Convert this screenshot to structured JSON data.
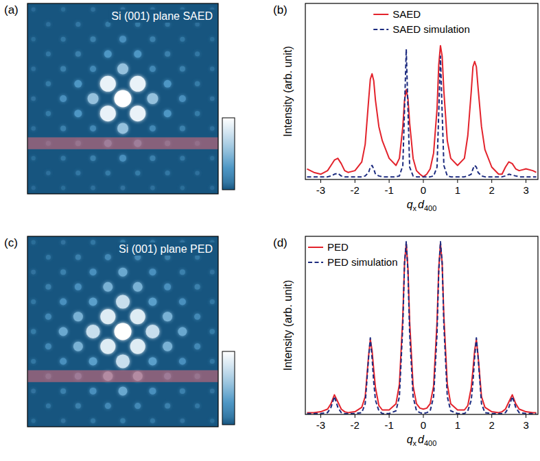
{
  "chart_data": [
    {
      "type": "image",
      "panel": "(a)",
      "title": "Si (001) plane SAED",
      "xlim": [
        -3.2,
        3.2
      ],
      "ylim": [
        -3.2,
        3.2
      ],
      "tick_labels": false,
      "grid_x": [
        -3,
        -2.5,
        -2,
        -1.5,
        -1,
        -0.5,
        0,
        0.5,
        1,
        1.5,
        2,
        2.5,
        3
      ],
      "grid_y": [
        3,
        2.5,
        2,
        1.5,
        1,
        0.5,
        0,
        -0.5,
        -1,
        -1.5,
        -2,
        -2.5,
        -3
      ],
      "cells": [
        [
          0.05,
          null,
          0.06,
          null,
          0.07,
          null,
          0.08,
          null,
          0.07,
          null,
          0.06,
          null,
          0.05
        ],
        [
          null,
          0.07,
          null,
          0.1,
          null,
          0.12,
          null,
          0.12,
          null,
          0.1,
          null,
          0.07,
          null
        ],
        [
          0.06,
          null,
          0.1,
          null,
          0.15,
          null,
          0.25,
          null,
          0.15,
          null,
          0.1,
          null,
          0.06
        ],
        [
          null,
          0.1,
          null,
          0.15,
          null,
          0.3,
          null,
          0.3,
          null,
          0.15,
          null,
          0.1,
          null
        ],
        [
          0.07,
          null,
          0.15,
          null,
          0.2,
          null,
          0.55,
          null,
          0.2,
          null,
          0.15,
          null,
          0.07
        ],
        [
          null,
          0.12,
          null,
          0.3,
          null,
          0.9,
          null,
          0.9,
          null,
          0.3,
          null,
          0.12,
          null
        ],
        [
          0.08,
          null,
          0.25,
          null,
          0.55,
          null,
          1,
          null,
          0.55,
          null,
          0.25,
          null,
          0.08
        ],
        [
          null,
          0.12,
          null,
          0.3,
          null,
          0.9,
          null,
          0.9,
          null,
          0.3,
          null,
          0.12,
          null
        ],
        [
          0.07,
          null,
          0.15,
          null,
          0.2,
          null,
          0.55,
          null,
          0.2,
          null,
          0.15,
          null,
          0.07
        ],
        [
          null,
          0.1,
          null,
          0.15,
          null,
          0.3,
          null,
          0.3,
          null,
          0.15,
          null,
          0.1,
          null
        ],
        [
          0.06,
          null,
          0.1,
          null,
          0.15,
          null,
          0.25,
          null,
          0.15,
          null,
          0.1,
          null,
          0.06
        ],
        [
          null,
          0.07,
          null,
          0.1,
          null,
          0.12,
          null,
          0.12,
          null,
          0.1,
          null,
          0.07,
          null
        ],
        [
          0.05,
          null,
          0.06,
          null,
          0.07,
          null,
          0.08,
          null,
          0.07,
          null,
          0.06,
          null,
          0.05
        ]
      ],
      "zlim": [
        0,
        1
      ],
      "colors": [
        "#17557f",
        "#4f98c6",
        "#ffffff"
      ],
      "profile_y": -1.5,
      "profile_width": 0.4
    },
    {
      "type": "line",
      "panel": "(b)",
      "x": [
        -3.4,
        -3.2,
        -3.0,
        -2.8,
        -2.7,
        -2.6,
        -2.5,
        -2.4,
        -2.3,
        -2.2,
        -2.0,
        -1.8,
        -1.7,
        -1.6,
        -1.55,
        -1.5,
        -1.45,
        -1.4,
        -1.3,
        -1.2,
        -1.0,
        -0.8,
        -0.7,
        -0.6,
        -0.55,
        -0.5,
        -0.45,
        -0.4,
        -0.3,
        -0.2,
        -0.1,
        0,
        0.1,
        0.2,
        0.3,
        0.4,
        0.45,
        0.5,
        0.55,
        0.6,
        0.7,
        0.8,
        1.0,
        1.2,
        1.3,
        1.4,
        1.45,
        1.5,
        1.55,
        1.6,
        1.7,
        1.8,
        2.0,
        2.2,
        2.3,
        2.4,
        2.5,
        2.6,
        2.7,
        2.8,
        3.0,
        3.2,
        3.3
      ],
      "xlim": [
        -3.45,
        3.35
      ],
      "xticks": [
        -3,
        -2,
        -1,
        0,
        1,
        2,
        3
      ],
      "ylim": [
        0,
        1
      ],
      "tick_labels": "x",
      "xlabel": [
        [
          "q",
          "x"
        ],
        [
          "d",
          "400"
        ]
      ],
      "ylabel": "Intensity (arb. unit)",
      "legend": "upper center",
      "series": [
        {
          "name": "SAED",
          "color": "#e3222b",
          "line_style": "solid",
          "values": [
            0.06,
            0.04,
            0.03,
            0.05,
            0.08,
            0.11,
            0.12,
            0.09,
            0.05,
            0.04,
            0.05,
            0.1,
            0.2,
            0.45,
            0.57,
            0.6,
            0.56,
            0.45,
            0.3,
            0.22,
            0.12,
            0.08,
            0.12,
            0.3,
            0.45,
            0.51,
            0.46,
            0.32,
            0.12,
            0.05,
            0.03,
            0.015,
            0.03,
            0.06,
            0.15,
            0.4,
            0.65,
            0.76,
            0.7,
            0.5,
            0.22,
            0.12,
            0.08,
            0.12,
            0.25,
            0.5,
            0.64,
            0.67,
            0.64,
            0.52,
            0.3,
            0.17,
            0.07,
            0.03,
            0.03,
            0.07,
            0.1,
            0.09,
            0.06,
            0.05,
            0.06,
            0.05,
            0.04
          ]
        },
        {
          "name": "SAED simulation",
          "color": "#1c2b7f",
          "line_style": "dashed",
          "values": [
            0.015,
            0.015,
            0.015,
            0.015,
            0.02,
            0.03,
            0.035,
            0.02,
            0.015,
            0.015,
            0.015,
            0.015,
            0.02,
            0.04,
            0.07,
            0.08,
            0.06,
            0.03,
            0.02,
            0.015,
            0.015,
            0.015,
            0.02,
            0.08,
            0.4,
            0.74,
            0.4,
            0.07,
            0.02,
            0.015,
            0.015,
            0.015,
            0.015,
            0.015,
            0.02,
            0.07,
            0.38,
            0.7,
            0.38,
            0.08,
            0.02,
            0.015,
            0.015,
            0.015,
            0.02,
            0.03,
            0.06,
            0.08,
            0.07,
            0.04,
            0.02,
            0.015,
            0.015,
            0.015,
            0.015,
            0.02,
            0.03,
            0.025,
            0.02,
            0.015,
            0.015,
            0.015,
            0.015
          ]
        }
      ]
    },
    {
      "type": "image",
      "panel": "(c)",
      "title": "Si (001) plane PED",
      "xlim": [
        -3.2,
        3.2
      ],
      "ylim": [
        -3.2,
        3.2
      ],
      "tick_labels": false,
      "grid_x": [
        -3,
        -2.5,
        -2,
        -1.5,
        -1,
        -0.5,
        0,
        0.5,
        1,
        1.5,
        2,
        2.5,
        3
      ],
      "grid_y": [
        3,
        2.5,
        2,
        1.5,
        1,
        0.5,
        0,
        -0.5,
        -1,
        -1.5,
        -2,
        -2.5,
        -3
      ],
      "cells": [
        [
          0.06,
          null,
          0.08,
          null,
          0.1,
          null,
          0.12,
          null,
          0.1,
          null,
          0.08,
          null,
          0.06
        ],
        [
          null,
          0.1,
          null,
          0.15,
          null,
          0.2,
          null,
          0.2,
          null,
          0.15,
          null,
          0.1,
          null
        ],
        [
          0.08,
          null,
          0.15,
          null,
          0.25,
          null,
          0.4,
          null,
          0.25,
          null,
          0.15,
          null,
          0.08
        ],
        [
          null,
          0.15,
          null,
          0.25,
          null,
          0.45,
          null,
          0.45,
          null,
          0.25,
          null,
          0.15,
          null
        ],
        [
          0.1,
          null,
          0.25,
          null,
          0.35,
          null,
          0.75,
          null,
          0.35,
          null,
          0.25,
          null,
          0.1
        ],
        [
          null,
          0.2,
          null,
          0.45,
          null,
          0.85,
          null,
          0.85,
          null,
          0.45,
          null,
          0.2,
          null
        ],
        [
          0.12,
          null,
          0.4,
          null,
          0.75,
          null,
          1,
          null,
          0.75,
          null,
          0.4,
          null,
          0.12
        ],
        [
          null,
          0.2,
          null,
          0.45,
          null,
          0.85,
          null,
          0.85,
          null,
          0.45,
          null,
          0.2,
          null
        ],
        [
          0.1,
          null,
          0.25,
          null,
          0.35,
          null,
          0.75,
          null,
          0.35,
          null,
          0.25,
          null,
          0.1
        ],
        [
          null,
          0.15,
          null,
          0.25,
          null,
          0.45,
          null,
          0.45,
          null,
          0.25,
          null,
          0.15,
          null
        ],
        [
          0.08,
          null,
          0.15,
          null,
          0.25,
          null,
          0.4,
          null,
          0.25,
          null,
          0.15,
          null,
          0.08
        ],
        [
          null,
          0.1,
          null,
          0.15,
          null,
          0.2,
          null,
          0.2,
          null,
          0.15,
          null,
          0.1,
          null
        ],
        [
          0.06,
          null,
          0.08,
          null,
          0.1,
          null,
          0.12,
          null,
          0.1,
          null,
          0.08,
          null,
          0.06
        ]
      ],
      "zlim": [
        0,
        1
      ],
      "colors": [
        "#17557f",
        "#4f98c6",
        "#ffffff"
      ],
      "profile_y": -1.5,
      "profile_width": 0.4
    },
    {
      "type": "line",
      "panel": "(d)",
      "x": [
        -3.4,
        -3.2,
        -3.0,
        -2.8,
        -2.7,
        -2.6,
        -2.5,
        -2.4,
        -2.3,
        -2.2,
        -2.0,
        -1.8,
        -1.7,
        -1.6,
        -1.55,
        -1.5,
        -1.45,
        -1.4,
        -1.3,
        -1.2,
        -1.0,
        -0.8,
        -0.7,
        -0.6,
        -0.55,
        -0.5,
        -0.45,
        -0.4,
        -0.3,
        -0.2,
        -0.1,
        0,
        0.1,
        0.2,
        0.3,
        0.4,
        0.45,
        0.5,
        0.55,
        0.6,
        0.7,
        0.8,
        1.0,
        1.2,
        1.3,
        1.4,
        1.45,
        1.5,
        1.55,
        1.6,
        1.7,
        1.8,
        2.0,
        2.2,
        2.3,
        2.4,
        2.5,
        2.6,
        2.7,
        2.8,
        3.0,
        3.2,
        3.3
      ],
      "xlim": [
        -3.45,
        3.35
      ],
      "xticks": [
        -3,
        -2,
        -1,
        0,
        1,
        2,
        3
      ],
      "ylim": [
        0,
        1
      ],
      "tick_labels": "x",
      "xlabel": [
        [
          "q",
          "x"
        ],
        [
          "d",
          "400"
        ]
      ],
      "ylabel": "Intensity (arb. unit)",
      "legend": "upper left",
      "series": [
        {
          "name": "PED",
          "color": "#e3222b",
          "line_style": "solid",
          "values": [
            0.01,
            0.01,
            0.015,
            0.03,
            0.06,
            0.11,
            0.07,
            0.03,
            0.015,
            0.01,
            0.015,
            0.04,
            0.1,
            0.33,
            0.42,
            0.36,
            0.25,
            0.15,
            0.05,
            0.025,
            0.025,
            0.06,
            0.17,
            0.55,
            0.85,
            0.96,
            0.82,
            0.52,
            0.16,
            0.06,
            0.035,
            0.03,
            0.035,
            0.06,
            0.16,
            0.52,
            0.82,
            0.96,
            0.85,
            0.55,
            0.17,
            0.06,
            0.025,
            0.025,
            0.05,
            0.15,
            0.25,
            0.36,
            0.42,
            0.33,
            0.1,
            0.04,
            0.015,
            0.01,
            0.015,
            0.03,
            0.07,
            0.11,
            0.06,
            0.03,
            0.015,
            0.01,
            0.01
          ]
        },
        {
          "name": "PED simulation",
          "color": "#1c2b7f",
          "line_style": "dashed",
          "values": [
            0.005,
            0.005,
            0.005,
            0.01,
            0.04,
            0.1,
            0.04,
            0.01,
            0.005,
            0.005,
            0.005,
            0.01,
            0.06,
            0.32,
            0.43,
            0.32,
            0.18,
            0.08,
            0.02,
            0.005,
            0.005,
            0.02,
            0.1,
            0.5,
            0.85,
            0.97,
            0.8,
            0.45,
            0.1,
            0.02,
            0.01,
            0.005,
            0.01,
            0.02,
            0.1,
            0.45,
            0.8,
            0.97,
            0.85,
            0.5,
            0.1,
            0.02,
            0.005,
            0.005,
            0.02,
            0.08,
            0.18,
            0.32,
            0.43,
            0.32,
            0.06,
            0.01,
            0.005,
            0.005,
            0.005,
            0.01,
            0.04,
            0.1,
            0.04,
            0.01,
            0.005,
            0.005,
            0.005
          ]
        }
      ]
    }
  ]
}
